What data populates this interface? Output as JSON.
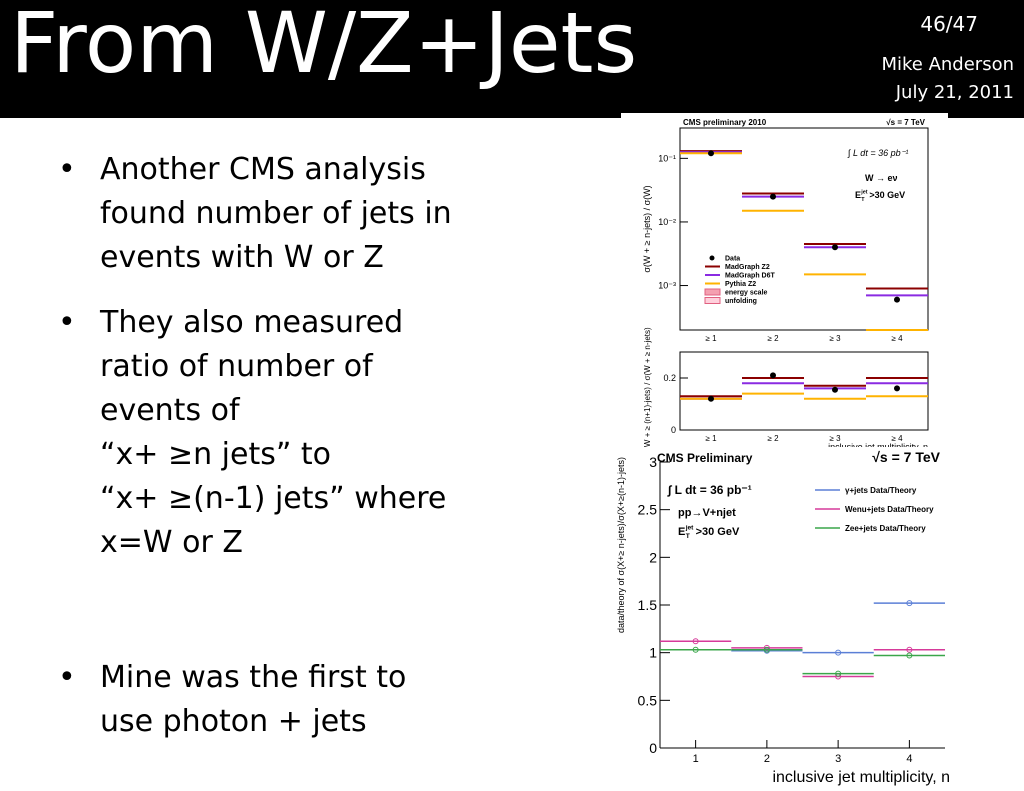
{
  "header": {
    "title": "From W/Z+Jets",
    "page": "46/47",
    "author": "Mike Anderson",
    "date": "July 21, 2011"
  },
  "bullets": [
    {
      "lines": [
        "Another CMS analysis",
        "found number of jets in",
        "events with W or Z"
      ]
    },
    {
      "lines": [
        "They also measured",
        "ratio of number of",
        "events of",
        "“x+ ≥n jets” to",
        "“x+ ≥(n-1) jets” where",
        "x=W or Z"
      ]
    },
    {
      "lines": [
        "Mine was the first to",
        "use photon + jets"
      ]
    }
  ],
  "chart_data": [
    {
      "type": "step",
      "title": "CMS preliminary 2010",
      "energy": "√s = 7 TeV",
      "lumi": "∫ L dt = 36 pb⁻¹",
      "process": "W → eν",
      "cut": {
        "symbol": "E",
        "sub": "T",
        "sup": "jet",
        "text": ">30 GeV"
      },
      "ylabel": "σ(W + ≥ n-jets) / σ(W)",
      "log_y": true,
      "categories": [
        "≥ 1",
        "≥ 2",
        "≥ 3",
        "≥ 4"
      ],
      "ylim": [
        0.0002,
        0.3
      ],
      "yticks": [
        {
          "value": 0.1,
          "label": "10⁻¹"
        },
        {
          "value": 0.01,
          "label": "10⁻²"
        },
        {
          "value": 0.001,
          "label": "10⁻³"
        }
      ],
      "points": {
        "name": "Data",
        "color": "#000000",
        "values": [
          0.12,
          0.025,
          0.004,
          0.0006
        ]
      },
      "series": [
        {
          "name": "MadGraph Z2",
          "color": "#8b0000",
          "values": [
            0.13,
            0.028,
            0.0045,
            0.0009
          ]
        },
        {
          "name": "MadGraph D6T",
          "color": "#8a2be2",
          "values": [
            0.125,
            0.025,
            0.004,
            0.0007
          ]
        },
        {
          "name": "Pythia Z2",
          "color": "#ffb300",
          "values": [
            0.12,
            0.015,
            0.0015,
            0.0002
          ]
        }
      ],
      "bands": [
        {
          "name": "energy scale",
          "color": "#f4a0b0"
        },
        {
          "name": "unfolding",
          "color": "#ffd0dc"
        }
      ]
    },
    {
      "type": "step",
      "ylabel": "σ(W + ≥ (n+1)-jets) / σ(W + ≥ n-jets)",
      "xlabel": "inclusive jet multiplicity, n",
      "categories": [
        "≥ 1",
        "≥ 2",
        "≥ 3",
        "≥ 4"
      ],
      "ylim": [
        0,
        0.3
      ],
      "yticks": [
        0,
        0.2
      ],
      "points": {
        "color": "#000000",
        "values": [
          0.12,
          0.21,
          0.155,
          0.16
        ]
      },
      "series": [
        {
          "color": "#8b0000",
          "values": [
            0.13,
            0.2,
            0.17,
            0.2
          ]
        },
        {
          "color": "#8a2be2",
          "values": [
            0.12,
            0.18,
            0.16,
            0.18
          ]
        },
        {
          "color": "#ffb300",
          "values": [
            0.12,
            0.14,
            0.12,
            0.13
          ]
        }
      ]
    },
    {
      "type": "scatter",
      "title": "CMS Preliminary",
      "energy": "√s = 7 TeV",
      "lumi": "∫ L dt = 36 pb⁻¹",
      "process": "pp→V+njet",
      "cut": {
        "symbol": "E",
        "sub": "T",
        "sup": "jet",
        "text": ">30 GeV"
      },
      "ylabel": "data/theory of σ(X+≥ n-jets)/σ(X+≥(n-1)-jets)",
      "xlabel": "inclusive jet multiplicity, n",
      "xlim": [
        0.5,
        4.5
      ],
      "xticks": [
        1,
        2,
        3,
        4
      ],
      "ylim": [
        0,
        3
      ],
      "yticks": [
        0,
        0.5,
        1,
        1.5,
        2,
        2.5,
        3
      ],
      "series": [
        {
          "name": "γ+jets Data/Theory",
          "color": "#5b7fd6",
          "x": [
            2,
            3,
            4
          ],
          "values": [
            1.02,
            1.0,
            1.52
          ]
        },
        {
          "name": "Wenu+jets Data/Theory",
          "color": "#d63a9a",
          "x": [
            1,
            2,
            3,
            4
          ],
          "values": [
            1.12,
            1.05,
            0.75,
            1.03
          ]
        },
        {
          "name": "Zee+jets Data/Theory",
          "color": "#3aa64a",
          "x": [
            1,
            2,
            3,
            4
          ],
          "values": [
            1.03,
            1.03,
            0.78,
            0.97
          ]
        }
      ]
    }
  ]
}
